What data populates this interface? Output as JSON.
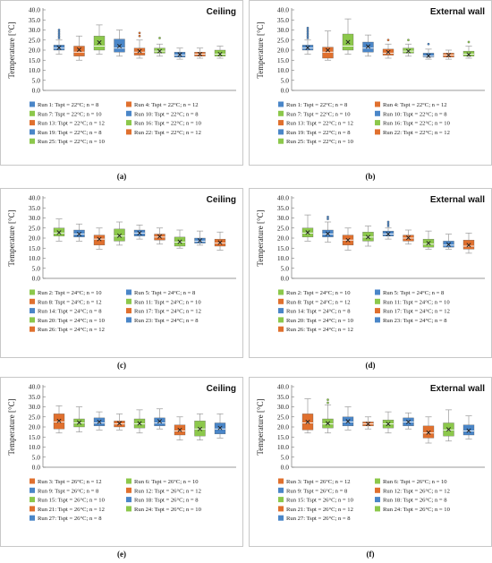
{
  "colors": {
    "blue": "#4a86c8",
    "orange": "#e0702e",
    "green": "#8cc84b",
    "frame": "#c8c8c8",
    "grid": "#e6e6e6"
  },
  "chart_data": [
    {
      "type": "box",
      "panel_label": "(a)",
      "title": "Ceiling",
      "ylabel": "Temperature [°C]",
      "ylim": [
        0,
        40
      ],
      "yticks": [
        "0.0",
        "5.0",
        "10.0",
        "15.0",
        "20.0",
        "25.0",
        "30.0",
        "35.0",
        "40.0"
      ],
      "series": [
        {
          "name": "Run 1: Tspt = 22°C; n = 8",
          "color": "blue",
          "stats": {
            "min": 18,
            "q1": 20,
            "median": 21,
            "q3": 22.5,
            "max": 25,
            "mean": 21.2
          },
          "outliers": [
            26,
            27,
            28,
            29,
            30
          ]
        },
        {
          "name": "Run 4: Tspt = 22°C; n = 12",
          "color": "orange",
          "stats": {
            "min": 15,
            "q1": 17,
            "median": 19,
            "q3": 22,
            "max": 27,
            "mean": 20.2
          },
          "outliers": []
        },
        {
          "name": "Run 7: Tspt = 22°C; n = 10",
          "color": "green",
          "stats": {
            "min": 18,
            "q1": 20,
            "median": 22,
            "q3": 27,
            "max": 32.5,
            "mean": 23.8
          },
          "outliers": []
        },
        {
          "name": "Run 10: Tspt = 22°C; n = 8",
          "color": "blue",
          "stats": {
            "min": 17,
            "q1": 19,
            "median": 21,
            "q3": 25.5,
            "max": 30,
            "mean": 22
          },
          "outliers": []
        },
        {
          "name": "Run 13: Tspt = 22°C; n = 12",
          "color": "orange",
          "stats": {
            "min": 16,
            "q1": 17.5,
            "median": 19,
            "q3": 21,
            "max": 25,
            "mean": 19.5
          },
          "outliers": [
            27,
            28.5
          ]
        },
        {
          "name": "Run 16: Tspt = 22°C; n = 10",
          "color": "green",
          "stats": {
            "min": 17,
            "q1": 18.5,
            "median": 19.5,
            "q3": 21,
            "max": 23,
            "mean": 19.5
          },
          "outliers": [
            26
          ]
        },
        {
          "name": "Run 19: Tspt = 22°C; n = 8",
          "color": "blue",
          "stats": {
            "min": 15.5,
            "q1": 16.5,
            "median": 17.5,
            "q3": 19,
            "max": 21,
            "mean": 17.8
          },
          "outliers": []
        },
        {
          "name": "Run 22: Tspt = 22°C; n = 12",
          "color": "orange",
          "stats": {
            "min": 16,
            "q1": 17,
            "median": 18,
            "q3": 19,
            "max": 21,
            "mean": 18
          },
          "outliers": []
        },
        {
          "name": "Run 25: Tspt = 22°C; n = 10",
          "color": "green",
          "stats": {
            "min": 16,
            "q1": 17,
            "median": 18,
            "q3": 20,
            "max": 22,
            "mean": 18
          },
          "outliers": []
        }
      ]
    },
    {
      "type": "box",
      "panel_label": "(b)",
      "title": "External wall",
      "ylabel": "Temperature [°C]",
      "ylim": [
        0,
        40
      ],
      "yticks": [
        "0.0",
        "5.0",
        "10.0",
        "15.0",
        "20.0",
        "25.0",
        "30.0",
        "35.0",
        "40.0"
      ],
      "series": [
        {
          "name": "Run 1: Tspt = 22°C; n = 8",
          "color": "blue",
          "stats": {
            "min": 18,
            "q1": 20,
            "median": 21,
            "q3": 22.5,
            "max": 25,
            "mean": 21.2
          },
          "outliers": [
            26,
            27,
            28,
            29,
            30,
            31
          ]
        },
        {
          "name": "Run 4: Tspt = 22°C; n = 12",
          "color": "orange",
          "stats": {
            "min": 15,
            "q1": 16,
            "median": 19,
            "q3": 21.5,
            "max": 29.5,
            "mean": 20
          },
          "outliers": []
        },
        {
          "name": "Run 7: Tspt = 22°C; n = 10",
          "color": "green",
          "stats": {
            "min": 18,
            "q1": 20,
            "median": 22,
            "q3": 28,
            "max": 35.5,
            "mean": 24
          },
          "outliers": []
        },
        {
          "name": "Run 10: Tspt = 22°C; n = 8",
          "color": "blue",
          "stats": {
            "min": 17,
            "q1": 19,
            "median": 21,
            "q3": 24,
            "max": 27.5,
            "mean": 21.8
          },
          "outliers": []
        },
        {
          "name": "Run 13: Tspt = 22°C; n = 12",
          "color": "orange",
          "stats": {
            "min": 16,
            "q1": 17.5,
            "median": 18.5,
            "q3": 20.5,
            "max": 23,
            "mean": 19
          },
          "outliers": [
            25
          ]
        },
        {
          "name": "Run 16: Tspt = 22°C; n = 10",
          "color": "green",
          "stats": {
            "min": 17,
            "q1": 18.5,
            "median": 19.5,
            "q3": 21,
            "max": 23,
            "mean": 19.5
          },
          "outliers": [
            25
          ]
        },
        {
          "name": "Run 19: Tspt = 22°C; n = 8",
          "color": "blue",
          "stats": {
            "min": 15.5,
            "q1": 16.5,
            "median": 17,
            "q3": 18.5,
            "max": 20.5,
            "mean": 17.2
          },
          "outliers": [
            23
          ]
        },
        {
          "name": "Run 22: Tspt = 22°C; n = 12",
          "color": "orange",
          "stats": {
            "min": 15.5,
            "q1": 16.5,
            "median": 17.5,
            "q3": 18.5,
            "max": 20,
            "mean": 17.5
          },
          "outliers": []
        },
        {
          "name": "Run 25: Tspt = 22°C; n = 10",
          "color": "green",
          "stats": {
            "min": 16,
            "q1": 17,
            "median": 18,
            "q3": 19.5,
            "max": 22,
            "mean": 17.8
          },
          "outliers": [
            24
          ]
        }
      ]
    },
    {
      "type": "box",
      "panel_label": "(c)",
      "title": "Ceiling",
      "ylabel": "Temperature [°C]",
      "ylim": [
        0,
        40
      ],
      "yticks": [
        "0.0",
        "5.0",
        "10.0",
        "15.0",
        "20.0",
        "25.0",
        "30.0",
        "35.0",
        "40.0"
      ],
      "series": [
        {
          "name": "Run 2: Tspt = 24°C; n = 10",
          "color": "green",
          "stats": {
            "min": 18.5,
            "q1": 21,
            "median": 22.5,
            "q3": 25,
            "max": 29.5,
            "mean": 22.8
          },
          "outliers": []
        },
        {
          "name": "Run 5: Tspt = 24°C; n = 8",
          "color": "blue",
          "stats": {
            "min": 18.5,
            "q1": 20.5,
            "median": 22,
            "q3": 24,
            "max": 27,
            "mean": 22
          },
          "outliers": []
        },
        {
          "name": "Run 8: Tspt = 24°C; n = 12",
          "color": "orange",
          "stats": {
            "min": 14.5,
            "q1": 16.5,
            "median": 19.5,
            "q3": 21.5,
            "max": 25,
            "mean": 19.5
          },
          "outliers": []
        },
        {
          "name": "Run 11: Tspt = 24°C; n = 10",
          "color": "green",
          "stats": {
            "min": 16.5,
            "q1": 18.5,
            "median": 21,
            "q3": 24.5,
            "max": 28,
            "mean": 21.2
          },
          "outliers": []
        },
        {
          "name": "Run 14: Tspt = 24°C; n = 8",
          "color": "blue",
          "stats": {
            "min": 19.5,
            "q1": 21,
            "median": 22.5,
            "q3": 24,
            "max": 26.5,
            "mean": 22.5
          },
          "outliers": []
        },
        {
          "name": "Run 17: Tspt = 24°C; n = 12",
          "color": "orange",
          "stats": {
            "min": 17,
            "q1": 19,
            "median": 20.5,
            "q3": 22,
            "max": 25,
            "mean": 20.8
          },
          "outliers": []
        },
        {
          "name": "Run 20: Tspt = 24°C; n = 10",
          "color": "green",
          "stats": {
            "min": 15,
            "q1": 16,
            "median": 18,
            "q3": 20.5,
            "max": 24,
            "mean": 18.2
          },
          "outliers": []
        },
        {
          "name": "Run 23: Tspt = 24°C; n = 8",
          "color": "blue",
          "stats": {
            "min": 16.5,
            "q1": 17.5,
            "median": 18.5,
            "q3": 20,
            "max": 23.5,
            "mean": 18.8
          },
          "outliers": []
        },
        {
          "name": "Run 26: Tspt = 24°C; n = 12",
          "color": "orange",
          "stats": {
            "min": 14,
            "q1": 16,
            "median": 17.5,
            "q3": 19.5,
            "max": 23,
            "mean": 17.8
          },
          "outliers": []
        }
      ]
    },
    {
      "type": "box",
      "panel_label": "(d)",
      "title": "External wall",
      "ylabel": "Temperature [°C]",
      "ylim": [
        0,
        40
      ],
      "yticks": [
        "0.0",
        "5.0",
        "10.0",
        "15.0",
        "20.0",
        "25.0",
        "30.0",
        "35.0",
        "40.0"
      ],
      "series": [
        {
          "name": "Run 2: Tspt = 24°C; n = 10",
          "color": "green",
          "stats": {
            "min": 18.5,
            "q1": 20.5,
            "median": 22.5,
            "q3": 25,
            "max": 31.5,
            "mean": 22.8
          },
          "outliers": []
        },
        {
          "name": "Run 5: Tspt = 24°C; n = 8",
          "color": "blue",
          "stats": {
            "min": 18,
            "q1": 20.5,
            "median": 22,
            "q3": 24,
            "max": 28,
            "mean": 22.2
          },
          "outliers": [
            29.5,
            30.5
          ]
        },
        {
          "name": "Run 8: Tspt = 24°C; n = 12",
          "color": "orange",
          "stats": {
            "min": 14,
            "q1": 16.5,
            "median": 19,
            "q3": 21.5,
            "max": 25,
            "mean": 19
          },
          "outliers": []
        },
        {
          "name": "Run 11: Tspt = 24°C; n = 10",
          "color": "green",
          "stats": {
            "min": 16,
            "q1": 18.5,
            "median": 20.5,
            "q3": 23,
            "max": 26,
            "mean": 20.5
          },
          "outliers": []
        },
        {
          "name": "Run 14: Tspt = 24°C; n = 8",
          "color": "blue",
          "stats": {
            "min": 19.5,
            "q1": 21,
            "median": 22,
            "q3": 23.5,
            "max": 25,
            "mean": 22
          },
          "outliers": [
            26,
            27,
            28
          ]
        },
        {
          "name": "Run 17: Tspt = 24°C; n = 12",
          "color": "orange",
          "stats": {
            "min": 17,
            "q1": 18.5,
            "median": 20,
            "q3": 21.5,
            "max": 24,
            "mean": 20.2
          },
          "outliers": []
        },
        {
          "name": "Run 20: Tspt = 24°C; n = 10",
          "color": "green",
          "stats": {
            "min": 14.5,
            "q1": 15.5,
            "median": 17,
            "q3": 19.5,
            "max": 23.5,
            "mean": 17.5
          },
          "outliers": []
        },
        {
          "name": "Run 23: Tspt = 24°C; n = 8",
          "color": "blue",
          "stats": {
            "min": 14.5,
            "q1": 15.5,
            "median": 16.5,
            "q3": 18.5,
            "max": 22,
            "mean": 16.8
          },
          "outliers": []
        },
        {
          "name": "Run 26: Tspt = 24°C; n = 12",
          "color": "orange",
          "stats": {
            "min": 12.5,
            "q1": 14.5,
            "median": 16,
            "q3": 19,
            "max": 22.5,
            "mean": 16.5
          },
          "outliers": []
        }
      ]
    },
    {
      "type": "box",
      "panel_label": "(e)",
      "title": "Ceiling",
      "ylabel": "Temperature [°C]",
      "ylim": [
        0,
        40
      ],
      "yticks": [
        "0.0",
        "5.0",
        "10.0",
        "15.0",
        "20.0",
        "25.0",
        "30.0",
        "35.0",
        "40.0"
      ],
      "series": [
        {
          "name": "Run 3: Tspt = 26°C; n = 12",
          "color": "orange",
          "stats": {
            "min": 17,
            "q1": 19,
            "median": 22.5,
            "q3": 26.5,
            "max": 30.5,
            "mean": 23
          },
          "outliers": []
        },
        {
          "name": "Run 6: Tspt = 26°C; n = 10",
          "color": "green",
          "stats": {
            "min": 17.5,
            "q1": 20,
            "median": 22,
            "q3": 24,
            "max": 30,
            "mean": 22.2
          },
          "outliers": []
        },
        {
          "name": "Run 9: Tspt = 26°C; n = 8",
          "color": "blue",
          "stats": {
            "min": 18.5,
            "q1": 20.5,
            "median": 22,
            "q3": 24.5,
            "max": 27.5,
            "mean": 22.5
          },
          "outliers": []
        },
        {
          "name": "Run 12: Tspt = 26°C; n = 12",
          "color": "orange",
          "stats": {
            "min": 18.5,
            "q1": 20,
            "median": 21.5,
            "q3": 23,
            "max": 26.5,
            "mean": 21.8
          },
          "outliers": []
        },
        {
          "name": "Run 15: Tspt = 26°C; n = 10",
          "color": "green",
          "stats": {
            "min": 17,
            "q1": 19.5,
            "median": 21.5,
            "q3": 24,
            "max": 28.5,
            "mean": 21.8
          },
          "outliers": []
        },
        {
          "name": "Run 18: Tspt = 26°C; n = 8",
          "color": "blue",
          "stats": {
            "min": 19,
            "q1": 20.5,
            "median": 22,
            "q3": 24.5,
            "max": 29,
            "mean": 22.8
          },
          "outliers": []
        },
        {
          "name": "Run 21: Tspt = 26°C; n = 12",
          "color": "orange",
          "stats": {
            "min": 13.5,
            "q1": 16,
            "median": 18,
            "q3": 21,
            "max": 25,
            "mean": 18.5
          },
          "outliers": []
        },
        {
          "name": "Run 24: Tspt = 26°C; n = 10",
          "color": "green",
          "stats": {
            "min": 13.5,
            "q1": 15.5,
            "median": 19,
            "q3": 23,
            "max": 26.5,
            "mean": 19
          },
          "outliers": []
        },
        {
          "name": "Run 27: Tspt = 26°C; n = 8",
          "color": "blue",
          "stats": {
            "min": 14.5,
            "q1": 16.5,
            "median": 19,
            "q3": 22,
            "max": 26.5,
            "mean": 19.5
          },
          "outliers": []
        }
      ]
    },
    {
      "type": "box",
      "panel_label": "(f)",
      "title": "External wall",
      "ylabel": "Temperature [°C]",
      "ylim": [
        0,
        40
      ],
      "yticks": [
        "0.0",
        "5.0",
        "10.0",
        "15.0",
        "20.0",
        "25.0",
        "30.0",
        "35.0",
        "40.0"
      ],
      "series": [
        {
          "name": "Run 3: Tspt = 26°C; n = 12",
          "color": "orange",
          "stats": {
            "min": 17,
            "q1": 18.5,
            "median": 22,
            "q3": 26.5,
            "max": 34,
            "mean": 22.5
          },
          "outliers": []
        },
        {
          "name": "Run 6: Tspt = 26°C; n = 10",
          "color": "green",
          "stats": {
            "min": 17,
            "q1": 19.5,
            "median": 21.5,
            "q3": 24,
            "max": 31,
            "mean": 21.8
          },
          "outliers": [
            32,
            33.5
          ]
        },
        {
          "name": "Run 9: Tspt = 26°C; n = 8",
          "color": "blue",
          "stats": {
            "min": 18.5,
            "q1": 20.5,
            "median": 22.5,
            "q3": 25,
            "max": 30,
            "mean": 22.8
          },
          "outliers": []
        },
        {
          "name": "Run 12: Tspt = 26°C; n = 12",
          "color": "orange",
          "stats": {
            "min": 19,
            "q1": 20.5,
            "median": 21.5,
            "q3": 22.5,
            "max": 25,
            "mean": 21.5
          },
          "outliers": []
        },
        {
          "name": "Run 15: Tspt = 26°C; n = 10",
          "color": "green",
          "stats": {
            "min": 17,
            "q1": 19.5,
            "median": 21.5,
            "q3": 23.5,
            "max": 27.5,
            "mean": 21.5
          },
          "outliers": []
        },
        {
          "name": "Run 18: Tspt = 26°C; n = 8",
          "color": "blue",
          "stats": {
            "min": 19,
            "q1": 20.5,
            "median": 22.5,
            "q3": 24.5,
            "max": 27,
            "mean": 22.5
          },
          "outliers": []
        },
        {
          "name": "Run 21: Tspt = 26°C; n = 12",
          "color": "orange",
          "stats": {
            "min": 12,
            "q1": 14.5,
            "median": 17,
            "q3": 20.5,
            "max": 25,
            "mean": 17.2
          },
          "outliers": []
        },
        {
          "name": "Run 24: Tspt = 26°C; n = 10",
          "color": "green",
          "stats": {
            "min": 13,
            "q1": 15.5,
            "median": 18.5,
            "q3": 22,
            "max": 28.5,
            "mean": 18.8
          },
          "outliers": []
        },
        {
          "name": "Run 27: Tspt = 26°C; n = 8",
          "color": "blue",
          "stats": {
            "min": 14,
            "q1": 16,
            "median": 18,
            "q3": 21,
            "max": 25.5,
            "mean": 18.2
          },
          "outliers": []
        }
      ]
    }
  ]
}
